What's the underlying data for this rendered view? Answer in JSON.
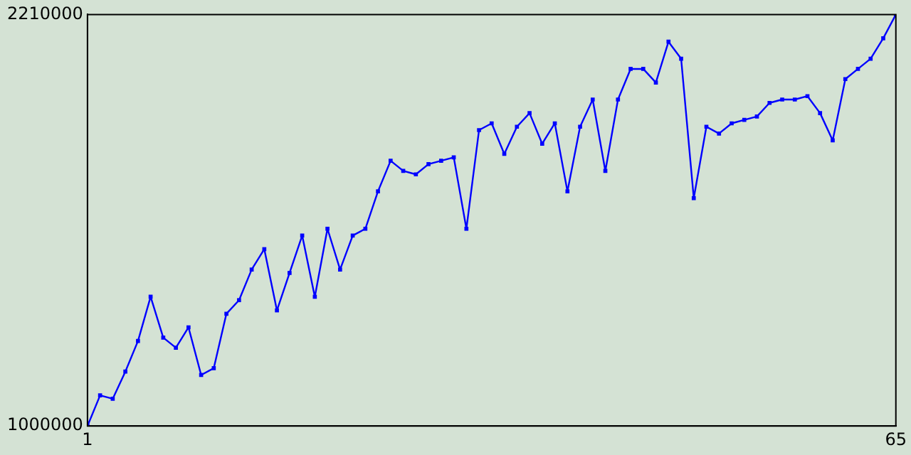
{
  "chart_data": {
    "type": "line",
    "x": [
      1,
      2,
      3,
      4,
      5,
      6,
      7,
      8,
      9,
      10,
      11,
      12,
      13,
      14,
      15,
      16,
      17,
      18,
      19,
      20,
      21,
      22,
      23,
      24,
      25,
      26,
      27,
      28,
      29,
      30,
      31,
      32,
      33,
      34,
      35,
      36,
      37,
      38,
      39,
      40,
      41,
      42,
      43,
      44,
      45,
      46,
      47,
      48,
      49,
      50,
      51,
      52,
      53,
      54,
      55,
      56,
      57,
      58,
      59,
      60,
      61,
      62,
      63,
      64,
      65
    ],
    "series": [
      {
        "color": "#0000ff",
        "values": [
          1000000,
          1090000,
          1080000,
          1160000,
          1250000,
          1380000,
          1260000,
          1230000,
          1290000,
          1150000,
          1170000,
          1330000,
          1370000,
          1460000,
          1520000,
          1340000,
          1450000,
          1560000,
          1380000,
          1580000,
          1460000,
          1560000,
          1580000,
          1690000,
          1780000,
          1750000,
          1740000,
          1770000,
          1780000,
          1790000,
          1580000,
          1870000,
          1890000,
          1800000,
          1880000,
          1920000,
          1830000,
          1890000,
          1690000,
          1880000,
          1960000,
          1750000,
          1960000,
          2050000,
          2050000,
          2010000,
          2130000,
          2080000,
          1670000,
          1880000,
          1860000,
          1890000,
          1900000,
          1910000,
          1950000,
          1960000,
          1960000,
          1970000,
          1920000,
          1840000,
          2020000,
          2050000,
          2080000,
          2140000,
          2210000
        ]
      }
    ],
    "xlim": [
      1,
      65
    ],
    "xticks": [
      1,
      65
    ],
    "ylim": [
      1000000,
      2210000
    ],
    "yticks": [
      1000000,
      2210000
    ],
    "grid": false,
    "legend": false,
    "marker": "square",
    "line_style": "solid"
  }
}
